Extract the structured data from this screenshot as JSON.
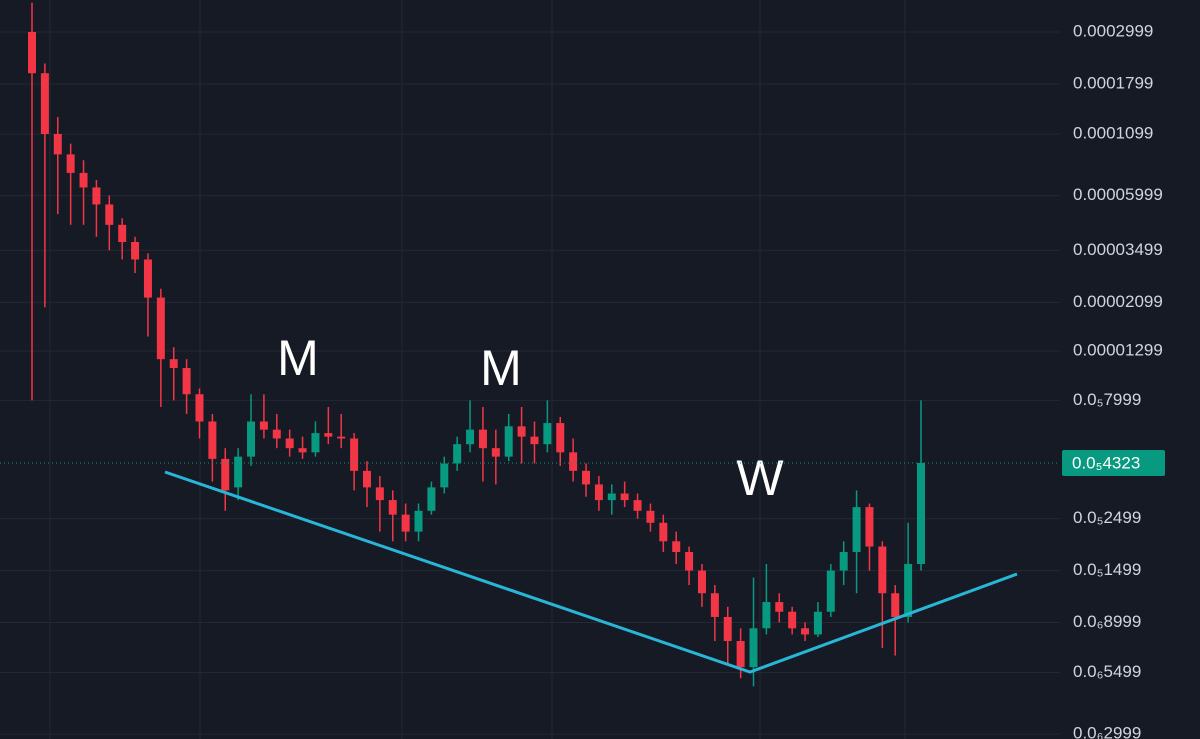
{
  "chart_data": {
    "type": "candlestick",
    "log_scale": true,
    "grid": true,
    "up_color": "#089981",
    "down_color": "#f23645",
    "ylim": [
      2.86e-07,
      0.000411
    ],
    "yticks": [
      {
        "value": 2.999e-07,
        "label": "0.0₆2999"
      },
      {
        "value": 5.499e-07,
        "label": "0.0₆5499"
      },
      {
        "value": 8.999e-07,
        "label": "0.0₆8999"
      },
      {
        "value": 1.499e-06,
        "label": "0.0₅1499"
      },
      {
        "value": 2.499e-06,
        "label": "0.0₅2499"
      },
      {
        "value": 7.999e-06,
        "label": "0.0₅7999"
      },
      1.299e-05,
      2.099e-05,
      3.499e-05,
      5.999e-05,
      0.0001099,
      0.0001799,
      0.0002999
    ],
    "last_price": {
      "value": 4.323e-06,
      "label": "0.0₅4323"
    },
    "annotations": [
      "M",
      "M",
      "W"
    ],
    "open": [
      0.0003,
      0.0002,
      0.00011,
      9e-05,
      7.5e-05,
      6.5e-05,
      5.5e-05,
      4.5e-05,
      3.8e-05,
      3.2e-05,
      2.2e-05,
      1.2e-05,
      1.1e-05,
      8.5e-06,
      6.5e-06,
      4.5e-06,
      3.4e-06,
      4.6e-06,
      6.5e-06,
      6e-06,
      5.5e-06,
      5e-06,
      4.8e-06,
      5.8e-06,
      5.6e-06,
      5.5e-06,
      4e-06,
      3.4e-06,
      3e-06,
      2.6e-06,
      2.2e-06,
      2.7e-06,
      3.4e-06,
      4.3e-06,
      5.2e-06,
      6e-06,
      5e-06,
      4.6e-06,
      6.2e-06,
      5.6e-06,
      5.2e-06,
      6.4e-06,
      4.8e-06,
      4e-06,
      3.5e-06,
      3e-06,
      3.2e-06,
      3e-06,
      2.7e-06,
      2.4e-06,
      2e-06,
      1.8e-06,
      1.5e-06,
      1.2e-06,
      9.5e-07,
      7.5e-07,
      5.8e-07,
      8.5e-07,
      1.1e-06,
      1e-06,
      8.5e-07,
      8e-07,
      1e-06,
      1.5e-06,
      1.8e-06,
      2.8e-06,
      1.9e-06,
      1.2e-06,
      9.5e-07,
      1.6e-06
    ],
    "high": [
      0.0004,
      0.00022,
      0.00013,
      0.0001,
      8.5e-05,
      7e-05,
      6e-05,
      4.8e-05,
      4e-05,
      3.4e-05,
      2.4e-05,
      1.35e-05,
      1.2e-05,
      9e-06,
      7e-06,
      5e-06,
      5e-06,
      8.5e-06,
      8.5e-06,
      7e-06,
      6e-06,
      5.6e-06,
      6.5e-06,
      7.5e-06,
      7e-06,
      5.8e-06,
      4.4e-06,
      3.8e-06,
      3.3e-06,
      2.9e-06,
      2.9e-06,
      3.6e-06,
      4.6e-06,
      5.6e-06,
      8e-06,
      7.5e-06,
      6e-06,
      7e-06,
      7.5e-06,
      6.5e-06,
      8e-06,
      6.8e-06,
      5.5e-06,
      4.3e-06,
      3.8e-06,
      3.5e-06,
      3.6e-06,
      3.2e-06,
      2.9e-06,
      2.6e-06,
      2.2e-06,
      1.9e-06,
      1.6e-06,
      1.3e-06,
      1.05e-06,
      8.5e-07,
      1.4e-06,
      1.6e-06,
      1.2e-06,
      1.05e-06,
      9e-07,
      1.1e-06,
      1.6e-06,
      2e-06,
      3.3e-06,
      2.9e-06,
      2e-06,
      1.3e-06,
      2.4e-06,
      8e-06
    ],
    "low": [
      8e-06,
      2e-05,
      5e-05,
      4.5e-05,
      4.5e-05,
      4e-05,
      3.5e-05,
      3.2e-05,
      2.8e-05,
      1.5e-05,
      7.5e-06,
      8e-06,
      7e-06,
      5.5e-06,
      3.6e-06,
      2.7e-06,
      3e-06,
      4.2e-06,
      5.5e-06,
      5e-06,
      4.6e-06,
      4.5e-06,
      4.6e-06,
      5.2e-06,
      5e-06,
      3.3e-06,
      2.8e-06,
      2.2e-06,
      2e-06,
      2e-06,
      2e-06,
      2.6e-06,
      3.2e-06,
      4e-06,
      4.8e-06,
      3.6e-06,
      3.5e-06,
      4.4e-06,
      4.3e-06,
      4.3e-06,
      4.8e-06,
      4.2e-06,
      3.6e-06,
      3.1e-06,
      2.7e-06,
      2.6e-06,
      2.8e-06,
      2.5e-06,
      2.2e-06,
      1.8e-06,
      1.6e-06,
      1.3e-06,
      1.05e-06,
      7.5e-07,
      6e-07,
      5.2e-07,
      4.8e-07,
      8e-07,
      9e-07,
      8e-07,
      7.5e-07,
      7.8e-07,
      9.5e-07,
      1.3e-06,
      1.2e-06,
      1.5e-06,
      7e-07,
      6.5e-07,
      9e-07,
      1.5e-06
    ],
    "close": [
      0.0002,
      0.00011,
      9e-05,
      7.5e-05,
      6.5e-05,
      5.5e-05,
      4.5e-05,
      3.8e-05,
      3.2e-05,
      2.2e-05,
      1.2e-05,
      1.1e-05,
      8.5e-06,
      6.5e-06,
      4.5e-06,
      3.3e-06,
      4.6e-06,
      6.5e-06,
      6e-06,
      5.5e-06,
      5e-06,
      4.8e-06,
      5.8e-06,
      5.6e-06,
      5.5e-06,
      4e-06,
      3.4e-06,
      3e-06,
      2.6e-06,
      2.2e-06,
      2.7e-06,
      3.4e-06,
      4.3e-06,
      5.2e-06,
      6e-06,
      5e-06,
      4.6e-06,
      6.2e-06,
      5.6e-06,
      5.2e-06,
      6.4e-06,
      4.8e-06,
      4e-06,
      3.5e-06,
      3e-06,
      3.2e-06,
      3e-06,
      2.7e-06,
      2.4e-06,
      2e-06,
      1.8e-06,
      1.5e-06,
      1.2e-06,
      9.5e-07,
      7.5e-07,
      5.8e-07,
      8.5e-07,
      1.1e-06,
      1e-06,
      8.5e-07,
      8e-07,
      1e-06,
      1.5e-06,
      1.8e-06,
      2.8e-06,
      1.9e-06,
      1.2e-06,
      9.5e-07,
      1.6e-06,
      4.323e-06
    ]
  }
}
